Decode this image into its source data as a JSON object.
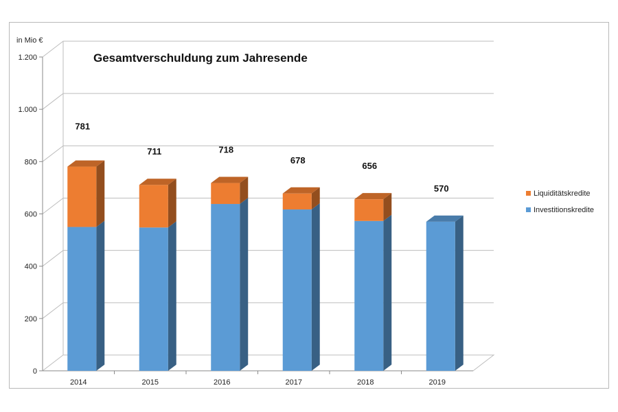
{
  "chart_data": {
    "type": "bar",
    "stacked": true,
    "three_d": true,
    "title": "Gesamtverschuldung zum Jahresende",
    "unit_label": "in Mio €",
    "categories": [
      "2014",
      "2015",
      "2016",
      "2017",
      "2018",
      "2019"
    ],
    "series": [
      {
        "name": "Investitionskredite",
        "color": "#5b9bd5",
        "values": [
          550,
          548,
          638,
          617,
          573,
          570
        ]
      },
      {
        "name": "Liquiditätskredite",
        "color": "#ed7d31",
        "values": [
          231,
          163,
          80,
          61,
          83,
          0
        ]
      }
    ],
    "totals": [
      "781",
      "711",
      "718",
      "678",
      "656",
      "570"
    ],
    "ylim": [
      0,
      1200
    ],
    "yticks": [
      0,
      200,
      400,
      600,
      800,
      1000,
      1200
    ],
    "ytick_labels": [
      "0",
      "200",
      "400",
      "600",
      "800",
      "1.000",
      "1.200"
    ],
    "grid": true,
    "legend_position": "right"
  }
}
